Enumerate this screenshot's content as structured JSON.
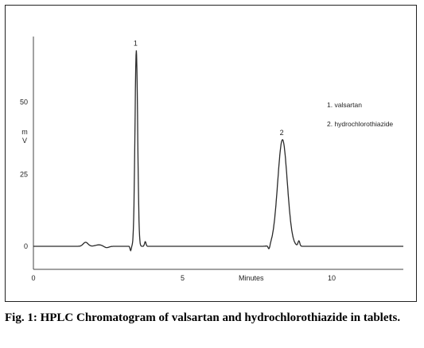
{
  "caption": "Fig. 1: HPLC Chromatogram of valsartan and hydrochlorothiazide in tablets.",
  "chart_data": {
    "type": "line",
    "title": "",
    "xlabel": "Minutes",
    "ylabel": "mV",
    "xlim": [
      0,
      12.4
    ],
    "ylim": [
      -3,
      70
    ],
    "x_ticks": [
      0,
      5,
      10
    ],
    "y_ticks": [
      0,
      25,
      50
    ],
    "grid": false,
    "line_color": "#2a2a2a",
    "peaks": [
      {
        "label": "1",
        "compound": "valsartan",
        "retention_time": 3.45,
        "height": 68
      },
      {
        "label": "2",
        "compound": "hydrochlorothiazide",
        "retention_time": 8.35,
        "height": 37
      }
    ],
    "legend": [
      "1. valsartan",
      "2. hydrochlorothiazide"
    ],
    "legend_position": "top-right"
  }
}
